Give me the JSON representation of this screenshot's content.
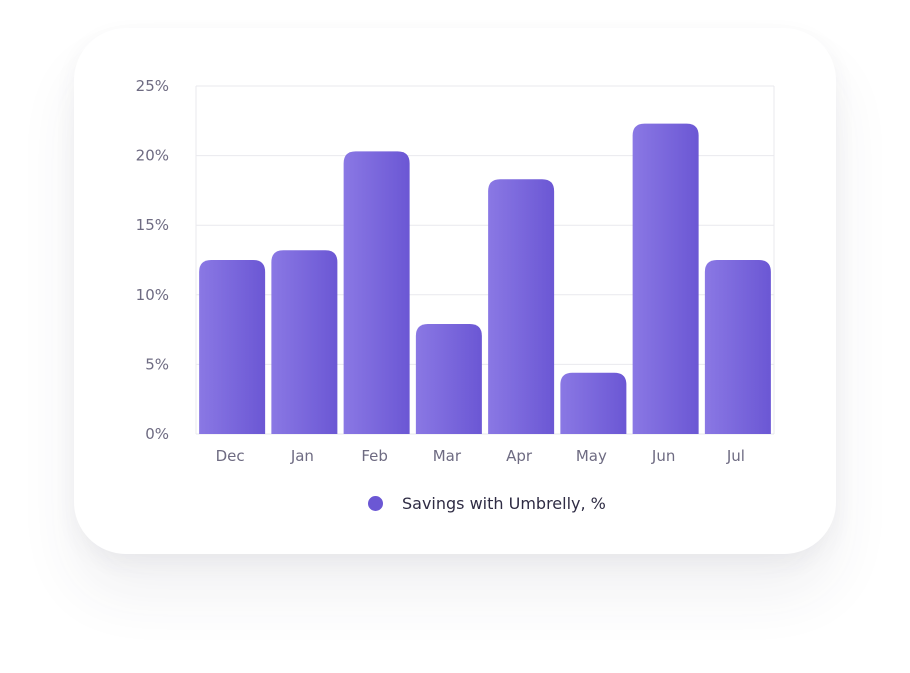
{
  "chart_data": {
    "type": "bar",
    "categories": [
      "Dec",
      "Jan",
      "Feb",
      "Mar",
      "Apr",
      "May",
      "Jun",
      "Jul"
    ],
    "series": [
      {
        "name": "Savings with Umbrelly, %",
        "values": [
          12.5,
          13.2,
          20.3,
          7.9,
          18.3,
          4.4,
          22.3,
          12.5
        ]
      }
    ],
    "yticks": [
      "0%",
      "5%",
      "10%",
      "15%",
      "20%",
      "25%"
    ],
    "ylim": [
      0,
      25
    ],
    "grid": true,
    "legend": "bottom-center",
    "colors": {
      "bar_start": "#8a78e4",
      "bar_end": "#6b57d4",
      "grid": "#e9e9ee",
      "legend_dot": "#6b57d4"
    }
  }
}
